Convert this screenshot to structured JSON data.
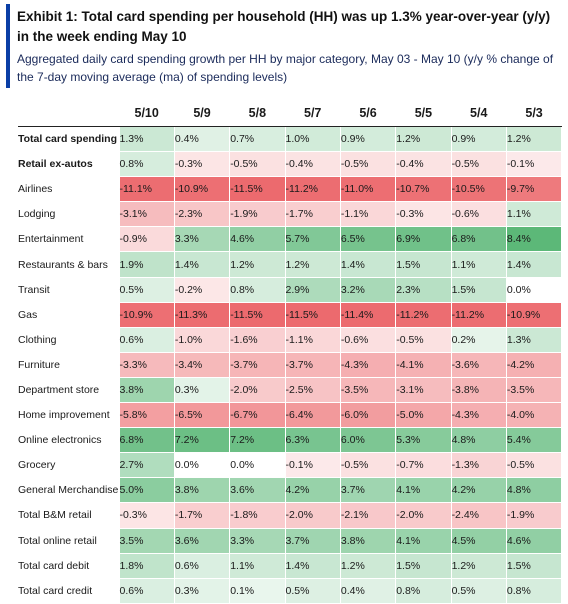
{
  "header": {
    "title": "Exhibit 1: Total card spending per household (HH) was up 1.3% year-over-year (y/y) in the week ending May 10",
    "subtitle": "Aggregated daily card spending growth per HH by major category, May 03 - May 10 (y/y % change of the 7-day moving average (ma) of spending levels)"
  },
  "table": {
    "columns": [
      "5/10",
      "5/9",
      "5/8",
      "5/7",
      "5/6",
      "5/5",
      "5/4",
      "5/3"
    ],
    "rows": [
      {
        "label": "Total card spending",
        "bold": true,
        "values": [
          "1.3%",
          "0.4%",
          "0.7%",
          "1.0%",
          "0.9%",
          "1.2%",
          "0.9%",
          "1.2%"
        ]
      },
      {
        "label": "Retail ex-autos",
        "bold": true,
        "values": [
          "0.8%",
          "-0.3%",
          "-0.5%",
          "-0.4%",
          "-0.5%",
          "-0.4%",
          "-0.5%",
          "-0.1%"
        ]
      },
      {
        "label": "Airlines",
        "bold": false,
        "values": [
          "-11.1%",
          "-10.9%",
          "-11.5%",
          "-11.2%",
          "-11.0%",
          "-10.7%",
          "-10.5%",
          "-9.7%"
        ]
      },
      {
        "label": "Lodging",
        "bold": false,
        "values": [
          "-3.1%",
          "-2.3%",
          "-1.9%",
          "-1.7%",
          "-1.1%",
          "-0.3%",
          "-0.6%",
          "1.1%"
        ]
      },
      {
        "label": "Entertainment",
        "bold": false,
        "values": [
          "-0.9%",
          "3.3%",
          "4.6%",
          "5.7%",
          "6.5%",
          "6.9%",
          "6.8%",
          "8.4%"
        ]
      },
      {
        "label": "Restaurants & bars",
        "bold": false,
        "values": [
          "1.9%",
          "1.4%",
          "1.2%",
          "1.2%",
          "1.4%",
          "1.5%",
          "1.1%",
          "1.4%"
        ]
      },
      {
        "label": "Transit",
        "bold": false,
        "values": [
          "0.5%",
          "-0.2%",
          "0.8%",
          "2.9%",
          "3.2%",
          "2.3%",
          "1.5%",
          "0.0%"
        ]
      },
      {
        "label": "Gas",
        "bold": false,
        "values": [
          "-10.9%",
          "-11.3%",
          "-11.5%",
          "-11.5%",
          "-11.4%",
          "-11.2%",
          "-11.2%",
          "-10.9%"
        ]
      },
      {
        "label": "Clothing",
        "bold": false,
        "values": [
          "0.6%",
          "-1.0%",
          "-1.6%",
          "-1.1%",
          "-0.6%",
          "-0.5%",
          "0.2%",
          "1.3%"
        ]
      },
      {
        "label": "Furniture",
        "bold": false,
        "values": [
          "-3.3%",
          "-3.4%",
          "-3.7%",
          "-3.7%",
          "-4.3%",
          "-4.1%",
          "-3.6%",
          "-4.2%"
        ]
      },
      {
        "label": "Department store",
        "bold": false,
        "values": [
          "3.8%",
          "0.3%",
          "-2.0%",
          "-2.5%",
          "-3.5%",
          "-3.1%",
          "-3.8%",
          "-3.5%"
        ]
      },
      {
        "label": "Home improvement",
        "bold": false,
        "values": [
          "-5.8%",
          "-6.5%",
          "-6.7%",
          "-6.4%",
          "-6.0%",
          "-5.0%",
          "-4.3%",
          "-4.0%"
        ]
      },
      {
        "label": "Online electronics",
        "bold": false,
        "values": [
          "6.8%",
          "7.2%",
          "7.2%",
          "6.3%",
          "6.0%",
          "5.3%",
          "4.8%",
          "5.4%"
        ]
      },
      {
        "label": "Grocery",
        "bold": false,
        "values": [
          "2.7%",
          "0.0%",
          "0.0%",
          "-0.1%",
          "-0.5%",
          "-0.7%",
          "-1.3%",
          "-0.5%"
        ]
      },
      {
        "label": "General Merchandise",
        "bold": false,
        "values": [
          "5.0%",
          "3.8%",
          "3.6%",
          "4.2%",
          "3.7%",
          "4.1%",
          "4.2%",
          "4.8%"
        ]
      },
      {
        "label": "Total B&M retail",
        "bold": false,
        "values": [
          "-0.3%",
          "-1.7%",
          "-1.8%",
          "-2.0%",
          "-2.1%",
          "-2.0%",
          "-2.4%",
          "-1.9%"
        ]
      },
      {
        "label": "Total online retail",
        "bold": false,
        "values": [
          "3.5%",
          "3.6%",
          "3.3%",
          "3.7%",
          "3.8%",
          "4.1%",
          "4.5%",
          "4.6%"
        ]
      },
      {
        "label": "Total card debit",
        "bold": false,
        "values": [
          "1.8%",
          "0.6%",
          "1.1%",
          "1.4%",
          "1.2%",
          "1.5%",
          "1.2%",
          "1.5%"
        ]
      },
      {
        "label": "Total card credit",
        "bold": false,
        "values": [
          "0.6%",
          "0.3%",
          "0.1%",
          "0.5%",
          "0.4%",
          "0.8%",
          "0.5%",
          "0.8%"
        ]
      }
    ]
  },
  "colors": {
    "accent_bar": "#0a3ea6",
    "max_negative": "#ec6a6e",
    "max_positive": "#5cb878",
    "neutral": "#ffffff"
  }
}
